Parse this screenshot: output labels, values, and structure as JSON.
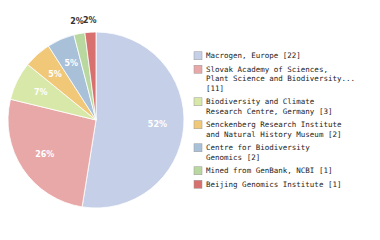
{
  "chart_data": {
    "type": "pie",
    "categories": [
      "Macrogen, Europe [22]",
      "Slovak Academy of Sciences,\nPlant Science and Biodiversity...\n[11]",
      "Biodiversity and Climate\nResearch Centre, Germany [3]",
      "Senckenberg Research Institute\nand Natural History Museum [2]",
      "Centre for Biodiversity\nGenomics [2]",
      "Mined from GenBank, NCBI [1]",
      "Beijing Genomics Institute [1]"
    ],
    "values": [
      52,
      26,
      7,
      5,
      5,
      2,
      2
    ],
    "value_labels": [
      "52%",
      "26%",
      "7%",
      "5%",
      "5%",
      "2%",
      "2%"
    ],
    "colors": [
      "#c5d0e8",
      "#e8a8a8",
      "#d8e8a8",
      "#f0c878",
      "#a8c0d8",
      "#b8d8a0",
      "#d87070"
    ],
    "data_labels": true,
    "legend": "right"
  }
}
